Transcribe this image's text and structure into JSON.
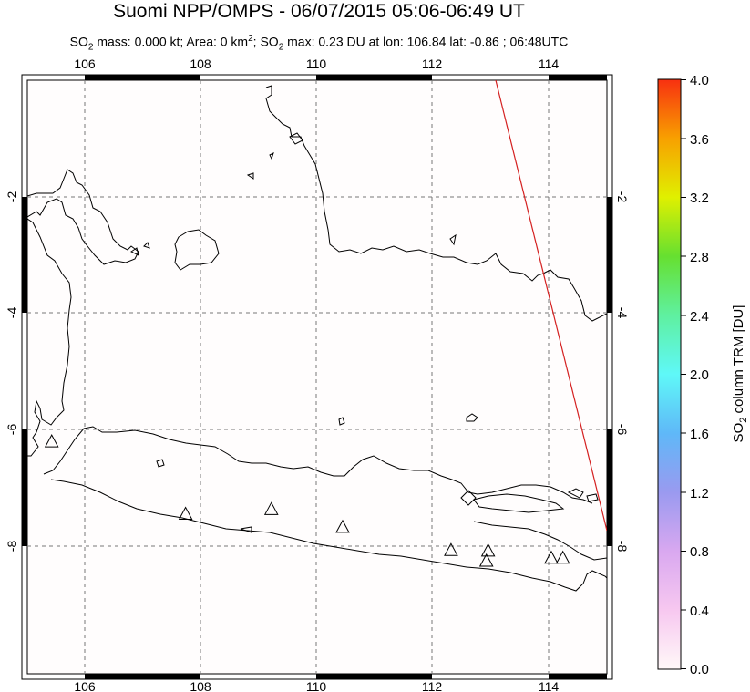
{
  "header": {
    "title": "Suomi NPP/OMPS - 06/07/2015 05:06-06:49 UT",
    "subtitle_prefix": "SO",
    "subtitle_sub1": "2",
    "subtitle_mid1": " mass: 0.000 kt; Area: 0 km",
    "subtitle_sup": "2",
    "subtitle_mid2": "; SO",
    "subtitle_sub2": "2",
    "subtitle_suffix": " max: 0.23 DU at lon: 106.84 lat: -0.86 ; 06:48UTC"
  },
  "map": {
    "lon_ticks": [
      "106",
      "108",
      "110",
      "112",
      "114"
    ],
    "lat_ticks": [
      "-2",
      "-4",
      "-6",
      "-8"
    ],
    "lon_range": [
      105,
      115
    ],
    "lat_range": [
      -10,
      0
    ],
    "coast_color": "#000000",
    "swath_edge_color": "#d42020",
    "volcano_marker": "triangle-outline"
  },
  "colorbar": {
    "ticks": [
      "4.0",
      "3.6",
      "3.2",
      "2.8",
      "2.4",
      "2.0",
      "1.6",
      "1.2",
      "0.8",
      "0.4",
      "0.0"
    ],
    "label_main": "SO",
    "label_sub": "2",
    "label_rest": " column TRM [DU]",
    "colors": [
      "#fff8f8",
      "#f7c8f0",
      "#d9a8f0",
      "#9a9af0",
      "#5fb8f8",
      "#5ff8f8",
      "#5ff0a0",
      "#66e030",
      "#e0f000",
      "#f8a000",
      "#f83010"
    ]
  },
  "volcanoes": [
    {
      "lon": 105.42,
      "lat": -6.1
    },
    {
      "lon": 107.73,
      "lat": -7.32
    },
    {
      "lon": 109.21,
      "lat": -7.24
    },
    {
      "lon": 110.44,
      "lat": -7.54
    },
    {
      "lon": 112.31,
      "lat": -7.93
    },
    {
      "lon": 112.95,
      "lat": -7.94
    },
    {
      "lon": 112.92,
      "lat": -8.11
    },
    {
      "lon": 114.04,
      "lat": -8.06
    },
    {
      "lon": 114.24,
      "lat": -8.06
    }
  ]
}
